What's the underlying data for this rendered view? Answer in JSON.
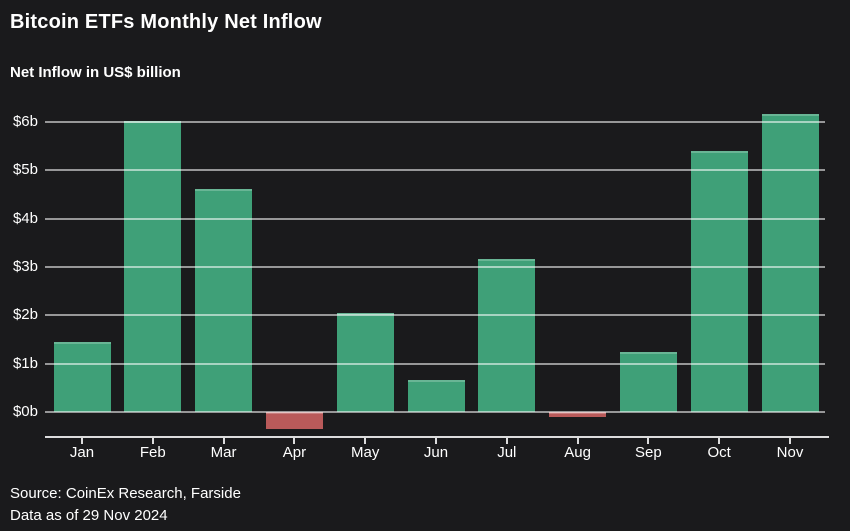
{
  "header": {
    "title": "Bitcoin ETFs Monthly Net Inflow",
    "subtitle": "Net Inflow in US$ billion"
  },
  "footer": {
    "source": "Source: CoinEx Research, Farside",
    "data_as_of": "Data as of 29 Nov 2024"
  },
  "chart_data": {
    "type": "bar",
    "title": "Bitcoin ETFs Monthly Net Inflow",
    "ylabel": "Net Inflow in US$ billion",
    "xlabel": "",
    "categories": [
      "Jan",
      "Feb",
      "Mar",
      "Apr",
      "May",
      "Jun",
      "Jul",
      "Aug",
      "Sep",
      "Oct",
      "Nov"
    ],
    "values": [
      1.45,
      6.03,
      4.62,
      -0.35,
      2.05,
      0.66,
      3.16,
      -0.1,
      1.25,
      5.4,
      6.16
    ],
    "unit": "US$ billion",
    "ytick_labels": [
      "$0b",
      "$1b",
      "$2b",
      "$3b",
      "$4b",
      "$5b",
      "$6b"
    ],
    "ytick_values": [
      0,
      1,
      2,
      3,
      4,
      5,
      6
    ],
    "ylim": [
      -0.55,
      6.5
    ],
    "grid": true,
    "legend": "none",
    "colors": {
      "positive_bar": "#3FA078",
      "negative_bar": "#B95A5A",
      "background": "#1A1A1C",
      "text": "#FFFFFF"
    }
  }
}
